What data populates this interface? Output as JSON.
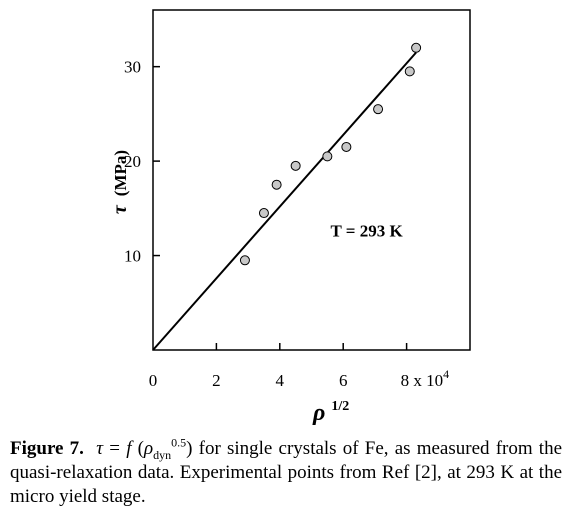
{
  "chart_data": {
    "type": "scatter",
    "title": "",
    "xlabel": "ρ",
    "xlabel_sup": "1/2",
    "ylabel": "τ",
    "ylabel_unit": "(MPa)",
    "xlim": [
      0,
      10
    ],
    "ylim": [
      0,
      36
    ],
    "x_ticks": [
      {
        "value": 0,
        "label": "0"
      },
      {
        "value": 2,
        "label": "2"
      },
      {
        "value": 4,
        "label": "4"
      },
      {
        "value": 6,
        "label": "6"
      },
      {
        "value": 8,
        "label": "8 x 10"
      }
    ],
    "x_tick_exp": "4",
    "y_ticks": [
      {
        "value": 10,
        "label": "10"
      },
      {
        "value": 20,
        "label": "20"
      },
      {
        "value": 30,
        "label": "30"
      }
    ],
    "grid": false,
    "points": [
      {
        "x": 2.9,
        "y": 9.5
      },
      {
        "x": 3.5,
        "y": 14.5
      },
      {
        "x": 3.9,
        "y": 17.5
      },
      {
        "x": 4.5,
        "y": 19.5
      },
      {
        "x": 5.5,
        "y": 20.5
      },
      {
        "x": 6.1,
        "y": 21.5
      },
      {
        "x": 7.1,
        "y": 25.5
      },
      {
        "x": 8.1,
        "y": 29.5
      },
      {
        "x": 8.3,
        "y": 32.0
      }
    ],
    "fit_line": {
      "x0": 0,
      "y0": 0,
      "x1": 8.3,
      "y1": 31.5
    },
    "annotation": "T = 293 K",
    "annotation_pos": {
      "x": 5.6,
      "y": 12.0
    },
    "marker_color": "#c8c8c8"
  },
  "caption": {
    "figure_label": "Figure 7.",
    "tau": "τ",
    "eq": " = ",
    "f": "f",
    "open": " (",
    "rho": "ρ",
    "rho_sub": "dyn",
    "rho_sup": "0.5",
    "rest": ") for single crystals of Fe, as measured from the quasi-relaxation data. Experimental points from Ref [2], at 293 K at the micro yield stage."
  }
}
